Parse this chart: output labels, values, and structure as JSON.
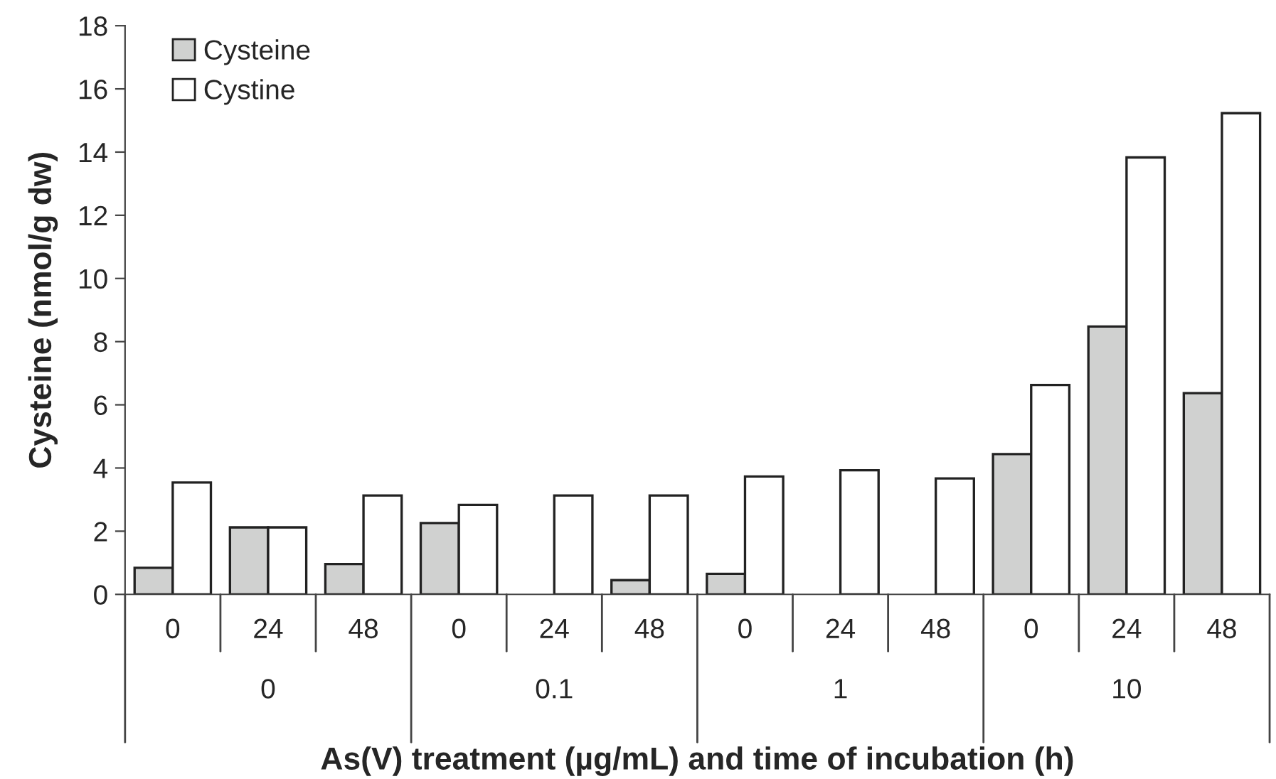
{
  "chart_data": {
    "type": "bar",
    "categories": [
      "0",
      "24",
      "48",
      "0",
      "24",
      "48",
      "0",
      "24",
      "48",
      "0",
      "24",
      "48"
    ],
    "series": [
      {
        "name": "Cysteine",
        "color": "#d0d1d0",
        "values": [
          0.84,
          2.12,
          0.96,
          2.26,
          null,
          0.45,
          0.65,
          null,
          null,
          4.44,
          8.48,
          6.37
        ]
      },
      {
        "name": "Cystine",
        "color": "#ffffff",
        "values": [
          3.54,
          2.12,
          3.13,
          2.83,
          3.13,
          3.13,
          3.73,
          3.93,
          3.67,
          6.63,
          13.83,
          15.23
        ]
      }
    ],
    "annotations": [
      "0",
      "0.1",
      "1",
      "10"
    ],
    "xlabel": "As(V) treatment (µg/mL) and time of incubation (h)",
    "ylabel": "Cysteine (nmol/g dw)",
    "ylim": [
      0,
      18
    ],
    "yticks": [
      0,
      2,
      4,
      6,
      8,
      10,
      12,
      14,
      16,
      18
    ],
    "grid": false,
    "legend": "top left"
  }
}
